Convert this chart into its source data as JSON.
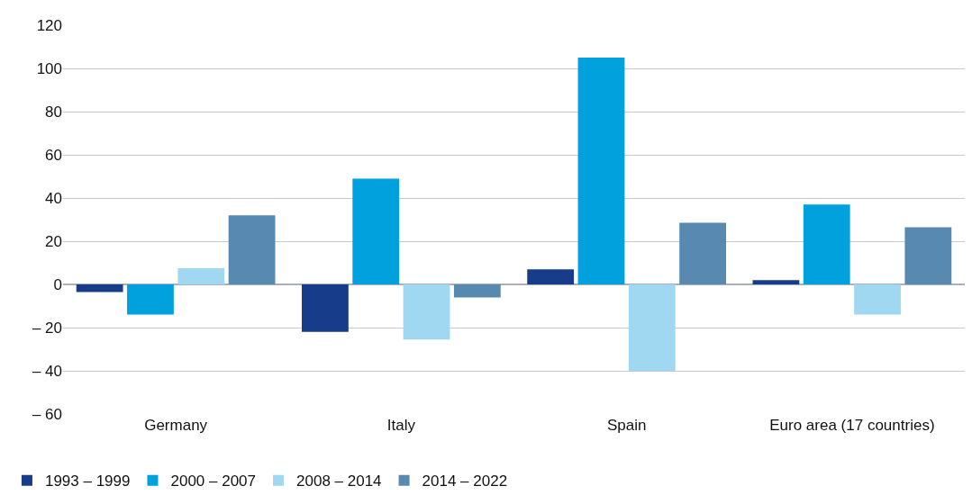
{
  "chart_data": {
    "type": "bar",
    "categories": [
      "Germany",
      "Italy",
      "Spain",
      "Euro area (17 countries)"
    ],
    "series": [
      {
        "name": "1993 – 1999",
        "color": "#173c8a",
        "values": [
          -3.5,
          -22,
          7,
          2
        ]
      },
      {
        "name": "2000 – 2007",
        "color": "#00a1dc",
        "values": [
          -14,
          49,
          105,
          37
        ]
      },
      {
        "name": "2008 – 2014",
        "color": "#a0d8f1",
        "values": [
          7.5,
          -25.5,
          -40,
          -14
        ]
      },
      {
        "name": "2014 – 2022",
        "color": "#5889b0",
        "values": [
          32,
          -6,
          28.5,
          26.5
        ]
      }
    ],
    "ylim": [
      -60,
      120
    ],
    "yticks": [
      {
        "value": -60,
        "label": "– 60"
      },
      {
        "value": -40,
        "label": "– 40"
      },
      {
        "value": -20,
        "label": "– 20"
      },
      0,
      20,
      40,
      60,
      80,
      100,
      120
    ],
    "grid": "y",
    "legend": "bottom left"
  }
}
